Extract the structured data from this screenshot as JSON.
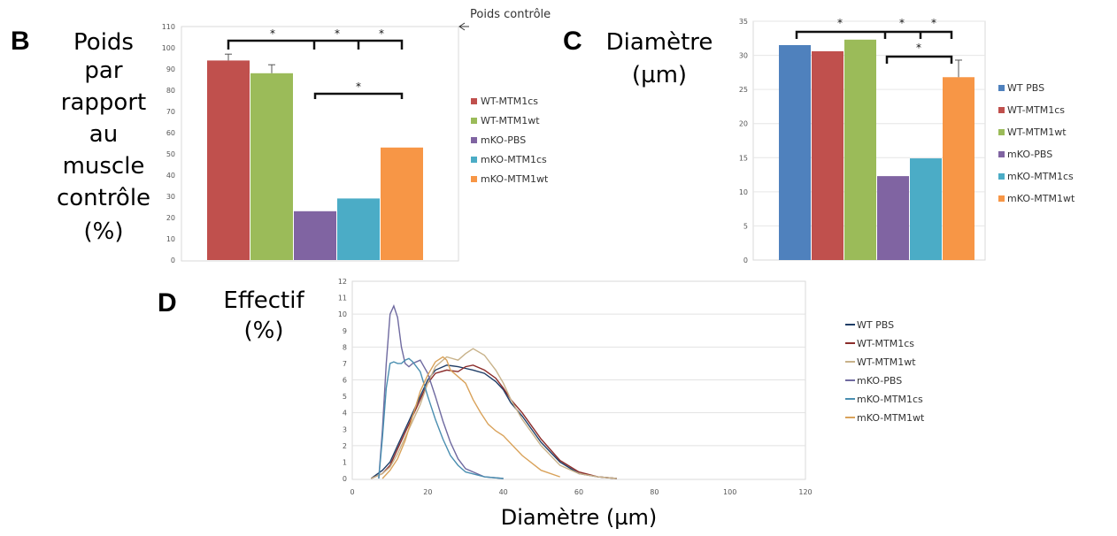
{
  "panels": {
    "B": {
      "letter": "B",
      "ylabel_lines": [
        "Poids",
        "par",
        "rapport",
        "au",
        "muscle",
        "contrôle",
        "(%)"
      ]
    },
    "C": {
      "letter": "C",
      "ylabel_lines": [
        "Diamètre",
        "(µm)"
      ]
    },
    "D": {
      "letter": "D",
      "ylabel_lines": [
        "Effectif",
        "(%)"
      ],
      "xlabel": "Diamètre (µm)"
    }
  },
  "chart_data": [
    {
      "id": "B",
      "type": "bar",
      "title": "",
      "xlabel": "",
      "ylabel": "Poids par rapport au muscle contrôle (%)",
      "ylim": [
        0,
        110
      ],
      "yticks": [
        "110",
        "100",
        "90",
        "80",
        "70",
        "60",
        "50",
        "40",
        "30",
        "20",
        "10",
        "0"
      ],
      "annotation": "Poids contrôle",
      "significance": [
        "*",
        "*",
        "*",
        "*"
      ],
      "legend_position": "right",
      "series": [
        {
          "name": "WT-MTM1cs",
          "value": 94,
          "error": 3,
          "color": "#c0504d"
        },
        {
          "name": "WT-MTM1wt",
          "value": 88,
          "error": 4,
          "color": "#9bbb59"
        },
        {
          "name": "mKO-PBS",
          "value": 23,
          "error": 0,
          "color": "#8064a2"
        },
        {
          "name": "mKO-MTM1cs",
          "value": 29,
          "error": 0,
          "color": "#4bacc6"
        },
        {
          "name": "mKO-MTM1wt",
          "value": 53,
          "error": 0,
          "color": "#f79646"
        }
      ]
    },
    {
      "id": "C",
      "type": "bar",
      "title": "",
      "xlabel": "",
      "ylabel": "Diamètre (µm)",
      "ylim": [
        0,
        35
      ],
      "yticks": [
        "35",
        "30",
        "25",
        "20",
        "15",
        "10",
        "5",
        "0"
      ],
      "significance": [
        "*",
        "*",
        "*",
        "*"
      ],
      "legend_position": "right",
      "series": [
        {
          "name": "WT PBS",
          "value": 31.5,
          "error": 0,
          "color": "#4f81bd"
        },
        {
          "name": "WT-MTM1cs",
          "value": 30.6,
          "error": 0,
          "color": "#c0504d"
        },
        {
          "name": "WT-MTM1wt",
          "value": 32.3,
          "error": 0,
          "color": "#9bbb59"
        },
        {
          "name": "mKO-PBS",
          "value": 12.3,
          "error": 0,
          "color": "#8064a2"
        },
        {
          "name": "mKO-MTM1cs",
          "value": 14.9,
          "error": 0,
          "color": "#4bacc6"
        },
        {
          "name": "mKO-MTM1wt",
          "value": 26.8,
          "error": 2.5,
          "color": "#f79646"
        }
      ]
    },
    {
      "id": "D",
      "type": "line",
      "title": "",
      "xlabel": "Diamètre (µm)",
      "ylabel": "Effectif (%)",
      "xlim": [
        0,
        120
      ],
      "ylim": [
        0,
        12
      ],
      "xticks": [
        "0",
        "20",
        "40",
        "60",
        "80",
        "100",
        "120"
      ],
      "yticks": [
        "12",
        "11",
        "10",
        "9",
        "8",
        "7",
        "6",
        "5",
        "4",
        "3",
        "2",
        "1",
        "0"
      ],
      "legend_position": "right",
      "series": [
        {
          "name": "WT PBS",
          "color": "#1f3d66",
          "x": [
            5,
            8,
            10,
            12,
            15,
            18,
            20,
            22,
            25,
            28,
            30,
            32,
            35,
            38,
            40,
            42,
            45,
            50,
            55,
            60,
            65,
            70
          ],
          "y": [
            0,
            0.5,
            1,
            2,
            3.5,
            5,
            6,
            6.6,
            6.9,
            6.8,
            6.7,
            6.6,
            6.4,
            5.9,
            5.4,
            4.6,
            3.8,
            2.2,
            1,
            0.3,
            0.1,
            0
          ]
        },
        {
          "name": "WT-MTM1cs",
          "color": "#8b2c2a",
          "x": [
            5,
            8,
            10,
            12,
            15,
            18,
            20,
            22,
            25,
            28,
            30,
            32,
            35,
            38,
            40,
            42,
            45,
            50,
            55,
            60,
            65,
            70
          ],
          "y": [
            0,
            0.3,
            0.8,
            1.8,
            3.3,
            4.8,
            5.8,
            6.4,
            6.6,
            6.5,
            6.8,
            6.9,
            6.6,
            6.1,
            5.5,
            4.8,
            4,
            2.4,
            1.1,
            0.4,
            0.1,
            0
          ]
        },
        {
          "name": "WT-MTM1wt",
          "color": "#c8b28a",
          "x": [
            5,
            8,
            10,
            12,
            15,
            18,
            20,
            22,
            25,
            28,
            30,
            32,
            35,
            38,
            40,
            42,
            45,
            50,
            55,
            60,
            65,
            70
          ],
          "y": [
            0,
            0.3,
            0.7,
            1.5,
            3,
            4.5,
            5.8,
            6.8,
            7.4,
            7.2,
            7.6,
            7.9,
            7.5,
            6.6,
            5.8,
            4.8,
            3.6,
            2,
            0.8,
            0.3,
            0.1,
            0
          ]
        },
        {
          "name": "mKO-PBS",
          "color": "#6f6aa0",
          "x": [
            7,
            8,
            9,
            10,
            11,
            12,
            13,
            14,
            15,
            16,
            18,
            20,
            22,
            24,
            26,
            28,
            30,
            35,
            40
          ],
          "y": [
            0,
            3,
            7,
            10,
            10.5,
            9.8,
            8,
            7,
            6.8,
            7,
            7.2,
            6.4,
            5,
            3.5,
            2.2,
            1.2,
            0.6,
            0.1,
            0
          ]
        },
        {
          "name": "mKO-MTM1cs",
          "color": "#4a8eb0",
          "x": [
            7,
            8,
            9,
            10,
            11,
            12,
            13,
            14,
            15,
            16,
            18,
            20,
            22,
            24,
            26,
            28,
            30,
            35,
            40
          ],
          "y": [
            0,
            2.5,
            5.5,
            7,
            7.1,
            7,
            7,
            7.2,
            7.3,
            7.1,
            6.5,
            5,
            3.6,
            2.4,
            1.4,
            0.8,
            0.4,
            0.1,
            0
          ]
        },
        {
          "name": "mKO-MTM1wt",
          "color": "#d9a25a",
          "x": [
            8,
            10,
            12,
            14,
            16,
            18,
            20,
            22,
            24,
            25,
            26,
            28,
            30,
            32,
            34,
            36,
            38,
            40,
            45,
            50,
            55
          ],
          "y": [
            0,
            0.5,
            1.2,
            2.3,
            3.8,
            5.3,
            6.3,
            7.1,
            7.4,
            7.2,
            6.6,
            6.2,
            5.8,
            4.8,
            4,
            3.3,
            2.9,
            2.6,
            1.4,
            0.5,
            0.1
          ]
        }
      ]
    }
  ]
}
